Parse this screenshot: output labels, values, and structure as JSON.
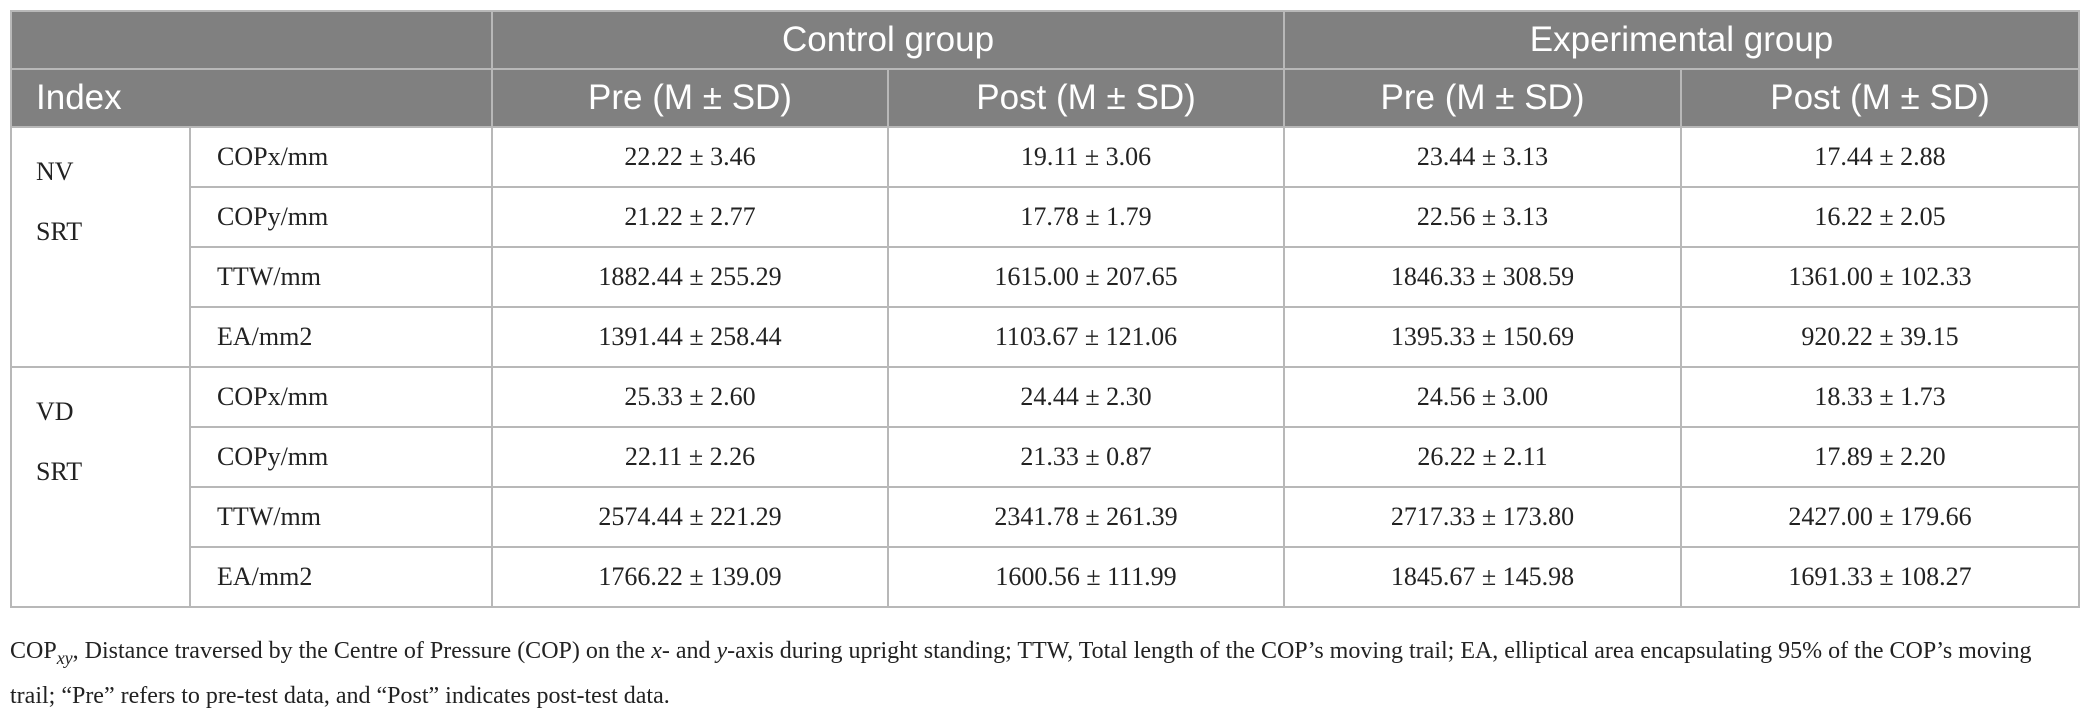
{
  "table": {
    "group_headers": [
      "Control group",
      "Experimental group"
    ],
    "index_label": "Index",
    "column_headers": [
      "Pre (M ± SD)",
      "Post (M ± SD)",
      "Pre (M ± SD)",
      "Post (M ± SD)"
    ],
    "sections": [
      {
        "group_line1": "NV",
        "group_line2": "SRT",
        "rows": [
          {
            "metric": "COPx/mm",
            "values": [
              "22.22 ± 3.46",
              "19.11 ± 3.06",
              "23.44 ± 3.13",
              "17.44 ± 2.88"
            ]
          },
          {
            "metric": "COPy/mm",
            "values": [
              "21.22 ± 2.77",
              "17.78 ± 1.79",
              "22.56 ± 3.13",
              "16.22 ± 2.05"
            ]
          },
          {
            "metric": "TTW/mm",
            "values": [
              "1882.44 ± 255.29",
              "1615.00 ± 207.65",
              "1846.33 ± 308.59",
              "1361.00 ± 102.33"
            ]
          },
          {
            "metric": "EA/mm2",
            "values": [
              "1391.44 ± 258.44",
              "1103.67 ± 121.06",
              "1395.33 ± 150.69",
              "920.22 ± 39.15"
            ]
          }
        ]
      },
      {
        "group_line1": "VD",
        "group_line2": "SRT",
        "rows": [
          {
            "metric": "COPx/mm",
            "values": [
              "25.33 ± 2.60",
              "24.44 ± 2.30",
              "24.56 ± 3.00",
              "18.33 ± 1.73"
            ]
          },
          {
            "metric": "COPy/mm",
            "values": [
              "22.11 ± 2.26",
              "21.33 ± 0.87",
              "26.22 ± 2.11",
              "17.89 ± 2.20"
            ]
          },
          {
            "metric": "TTW/mm",
            "values": [
              "2574.44 ± 221.29",
              "2341.78 ± 261.39",
              "2717.33 ± 173.80",
              "2427.00 ± 179.66"
            ]
          },
          {
            "metric": "EA/mm2",
            "values": [
              "1766.22 ± 139.09",
              "1600.56 ± 111.99",
              "1845.67 ± 145.98",
              "1691.33 ± 108.27"
            ]
          }
        ]
      }
    ]
  },
  "footnote": {
    "cop_prefix": "COP",
    "cop_sub": "xy",
    "part1": ", Distance traversed by the Centre of Pressure (COP) on the ",
    "x": "x",
    "part2": "- and ",
    "y": "y",
    "part3": "-axis during upright standing; TTW, Total length of the COP’s moving trail; EA, elliptical area encapsulating 95% of the COP’s moving trail; “Pre” refers to pre-test data, and “Post” indicates post-test data."
  }
}
